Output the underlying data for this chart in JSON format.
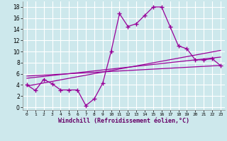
{
  "bg_color": "#cde8ec",
  "grid_color": "#b8d8dc",
  "line_color": "#990099",
  "x_label": "Windchill (Refroidissement éolien,°C)",
  "x_ticks": [
    0,
    1,
    2,
    3,
    4,
    5,
    6,
    7,
    8,
    9,
    10,
    11,
    12,
    13,
    14,
    15,
    16,
    17,
    18,
    19,
    20,
    21,
    22,
    23
  ],
  "y_ticks": [
    0,
    2,
    4,
    6,
    8,
    10,
    12,
    14,
    16,
    18
  ],
  "ylim": [
    -0.5,
    19.0
  ],
  "xlim": [
    -0.5,
    23.5
  ],
  "main_x": [
    0,
    1,
    2,
    3,
    4,
    5,
    6,
    7,
    8,
    9,
    10,
    11,
    12,
    13,
    14,
    15,
    16,
    17,
    18,
    19,
    20,
    21,
    22,
    23
  ],
  "main_y": [
    4.0,
    3.0,
    5.0,
    4.2,
    3.1,
    3.1,
    3.1,
    0.3,
    1.5,
    4.3,
    10.0,
    16.8,
    14.5,
    15.0,
    16.5,
    18.0,
    18.0,
    14.5,
    11.0,
    10.5,
    8.5,
    8.5,
    8.7,
    7.5
  ],
  "trend_lines": [
    {
      "x": [
        0,
        23
      ],
      "y": [
        3.8,
        10.2
      ]
    },
    {
      "x": [
        0,
        23
      ],
      "y": [
        5.2,
        9.0
      ]
    },
    {
      "x": [
        0,
        23
      ],
      "y": [
        5.6,
        7.5
      ]
    }
  ]
}
